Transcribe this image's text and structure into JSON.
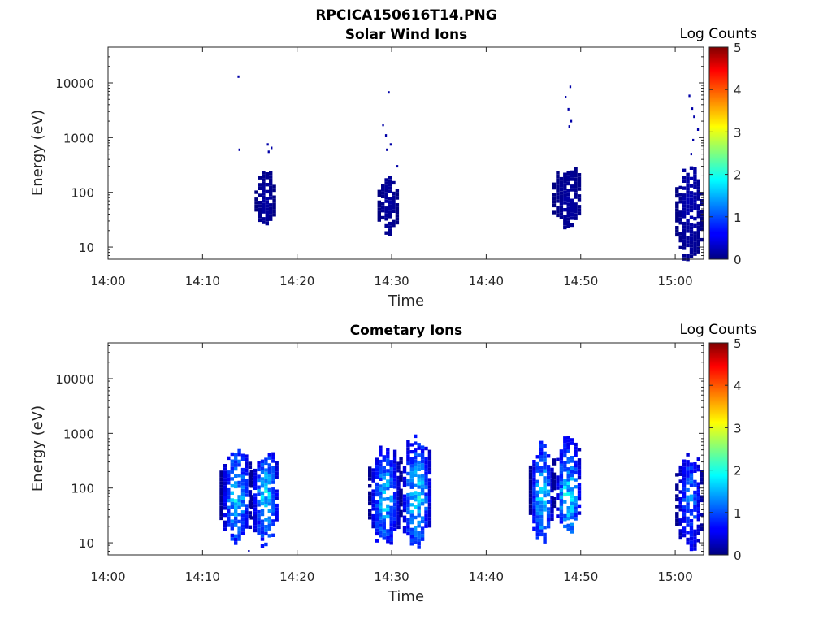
{
  "figure": {
    "title": "RPCICA150616T14.PNG"
  },
  "chart_data": [
    {
      "type": "heatmap",
      "title": "Solar Wind Ions",
      "xlabel": "Time",
      "ylabel": "Energy (eV)",
      "x_ticks": [
        "14:00",
        "14:10",
        "14:20",
        "14:30",
        "14:40",
        "14:50",
        "15:00"
      ],
      "x_range_minutes_after_1400": [
        0,
        63
      ],
      "y_scale": "log",
      "y_range": [
        6,
        45000
      ],
      "y_ticks": [
        "10",
        "100",
        "1000",
        "10000"
      ],
      "colorbar": {
        "label": "Log Counts",
        "range": [
          0,
          5
        ],
        "ticks": [
          "0",
          "1",
          "2",
          "3",
          "4",
          "5"
        ],
        "colormap": "jet"
      },
      "bursts": [
        {
          "t_start": 15.5,
          "t_end": 17.5,
          "e_low": 28,
          "e_high": 220,
          "peak_log_counts": 0.2
        },
        {
          "t_start": 28.5,
          "t_end": 30.5,
          "e_low": 18,
          "e_high": 170,
          "peak_log_counts": 0.2
        },
        {
          "t_start": 47.0,
          "t_end": 50.0,
          "e_low": 28,
          "e_high": 260,
          "peak_log_counts": 0.2
        },
        {
          "t_start": 60.0,
          "t_end": 62.8,
          "e_low": 7,
          "e_high": 250,
          "peak_log_counts": 0.3
        }
      ],
      "scatter_points": [
        {
          "t": 13.7,
          "e": 13000
        },
        {
          "t": 13.8,
          "e": 600
        },
        {
          "t": 16.8,
          "e": 750
        },
        {
          "t": 16.9,
          "e": 550
        },
        {
          "t": 17.2,
          "e": 650
        },
        {
          "t": 29.6,
          "e": 6700
        },
        {
          "t": 29.0,
          "e": 1700
        },
        {
          "t": 29.3,
          "e": 1100
        },
        {
          "t": 29.4,
          "e": 600
        },
        {
          "t": 29.8,
          "e": 750
        },
        {
          "t": 30.5,
          "e": 300
        },
        {
          "t": 48.8,
          "e": 8500
        },
        {
          "t": 48.3,
          "e": 5500
        },
        {
          "t": 48.6,
          "e": 3300
        },
        {
          "t": 48.9,
          "e": 2000
        },
        {
          "t": 48.7,
          "e": 1600
        },
        {
          "t": 61.4,
          "e": 5800
        },
        {
          "t": 61.7,
          "e": 3400
        },
        {
          "t": 61.9,
          "e": 2400
        },
        {
          "t": 62.3,
          "e": 1400
        },
        {
          "t": 61.8,
          "e": 900
        },
        {
          "t": 61.6,
          "e": 500
        }
      ]
    },
    {
      "type": "heatmap",
      "title": "Cometary Ions",
      "xlabel": "Time",
      "ylabel": "Energy (eV)",
      "x_ticks": [
        "14:00",
        "14:10",
        "14:20",
        "14:30",
        "14:40",
        "14:50",
        "15:00"
      ],
      "x_range_minutes_after_1400": [
        0,
        63
      ],
      "y_scale": "log",
      "y_range": [
        6,
        45000
      ],
      "y_ticks": [
        "10",
        "100",
        "1000",
        "10000"
      ],
      "colorbar": {
        "label": "Log Counts",
        "range": [
          0,
          5
        ],
        "ticks": [
          "0",
          "1",
          "2",
          "3",
          "4",
          "5"
        ],
        "colormap": "jet"
      },
      "bursts": [
        {
          "t_start": 11.8,
          "t_end": 15.0,
          "e_low": 12,
          "e_high": 550,
          "peak_log_counts": 1.9
        },
        {
          "t_start": 15.0,
          "t_end": 18.0,
          "e_low": 12,
          "e_high": 420,
          "peak_log_counts": 2.0
        },
        {
          "t_start": 27.5,
          "t_end": 30.8,
          "e_low": 12,
          "e_high": 480,
          "peak_log_counts": 1.9
        },
        {
          "t_start": 30.8,
          "t_end": 34.2,
          "e_low": 12,
          "e_high": 750,
          "peak_log_counts": 2.0
        },
        {
          "t_start": 44.5,
          "t_end": 47.0,
          "e_low": 15,
          "e_high": 550,
          "peak_log_counts": 2.1
        },
        {
          "t_start": 47.0,
          "t_end": 50.0,
          "e_low": 18,
          "e_high": 700,
          "peak_log_counts": 2.1
        },
        {
          "t_start": 60.0,
          "t_end": 62.8,
          "e_low": 10,
          "e_high": 400,
          "peak_log_counts": 1.4
        }
      ],
      "scatter_points": [
        {
          "t": 14.8,
          "e": 7
        }
      ]
    }
  ]
}
